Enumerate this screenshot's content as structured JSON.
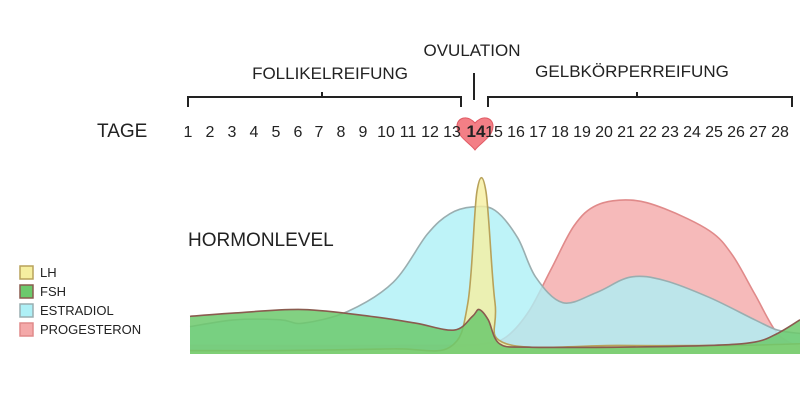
{
  "chart_data": {
    "type": "area",
    "phases": {
      "follicular": "FOLLIKELREIFUNG",
      "ovulation": "OVULATION",
      "luteal": "GELBKÖRPERREIFUNG"
    },
    "days_label": "TAGE",
    "days": [
      1,
      2,
      3,
      4,
      5,
      6,
      7,
      8,
      9,
      10,
      11,
      12,
      13,
      14,
      15,
      16,
      17,
      18,
      19,
      20,
      21,
      22,
      23,
      24,
      25,
      26,
      27,
      28
    ],
    "highlight_day": 14,
    "ylabel": "HORMONLEVEL",
    "legend_position": "left",
    "ylim": [
      0,
      1
    ],
    "series": [
      {
        "name": "LH",
        "fill": "#f6efa0",
        "stroke": "#b8a25a",
        "points": [
          [
            1,
            0.02
          ],
          [
            5,
            0.02
          ],
          [
            10,
            0.03
          ],
          [
            12.5,
            0.04
          ],
          [
            13.3,
            0.3
          ],
          [
            13.7,
            0.95
          ],
          [
            14.1,
            0.95
          ],
          [
            14.5,
            0.3
          ],
          [
            15,
            0.06
          ],
          [
            20,
            0.05
          ],
          [
            25,
            0.05
          ],
          [
            28,
            0.06
          ]
        ]
      },
      {
        "name": "FSH",
        "fill": "#6cc96c",
        "stroke": "#8a5b4f",
        "points": [
          [
            1,
            0.22
          ],
          [
            3,
            0.24
          ],
          [
            6,
            0.26
          ],
          [
            9,
            0.22
          ],
          [
            11,
            0.18
          ],
          [
            12.7,
            0.14
          ],
          [
            13.5,
            0.22
          ],
          [
            13.8,
            0.26
          ],
          [
            14.2,
            0.2
          ],
          [
            14.7,
            0.06
          ],
          [
            16,
            0.04
          ],
          [
            20,
            0.04
          ],
          [
            24,
            0.05
          ],
          [
            26,
            0.07
          ],
          [
            27,
            0.12
          ],
          [
            28,
            0.2
          ]
        ]
      },
      {
        "name": "ESTRADIOL",
        "fill": "#aef0f6",
        "stroke": "#9aaeb0",
        "points": [
          [
            1,
            0.16
          ],
          [
            3,
            0.2
          ],
          [
            5,
            0.2
          ],
          [
            6,
            0.18
          ],
          [
            8,
            0.25
          ],
          [
            10,
            0.42
          ],
          [
            11.5,
            0.7
          ],
          [
            12.5,
            0.82
          ],
          [
            13.5,
            0.86
          ],
          [
            14.5,
            0.84
          ],
          [
            15.5,
            0.68
          ],
          [
            16.3,
            0.45
          ],
          [
            17.5,
            0.3
          ],
          [
            19,
            0.36
          ],
          [
            20.5,
            0.45
          ],
          [
            22,
            0.43
          ],
          [
            24,
            0.33
          ],
          [
            26,
            0.2
          ],
          [
            27,
            0.14
          ],
          [
            28,
            0.12
          ]
        ]
      },
      {
        "name": "PROGESTERON",
        "fill": "#f4a9a9",
        "stroke": "#e08a8a",
        "points": [
          [
            1,
            0.05
          ],
          [
            12,
            0.05
          ],
          [
            14,
            0.06
          ],
          [
            15,
            0.1
          ],
          [
            16,
            0.25
          ],
          [
            17,
            0.5
          ],
          [
            18,
            0.75
          ],
          [
            19,
            0.87
          ],
          [
            20.5,
            0.9
          ],
          [
            22,
            0.85
          ],
          [
            24,
            0.72
          ],
          [
            25,
            0.58
          ],
          [
            26,
            0.35
          ],
          [
            27,
            0.12
          ],
          [
            28,
            0.04
          ]
        ]
      }
    ]
  }
}
